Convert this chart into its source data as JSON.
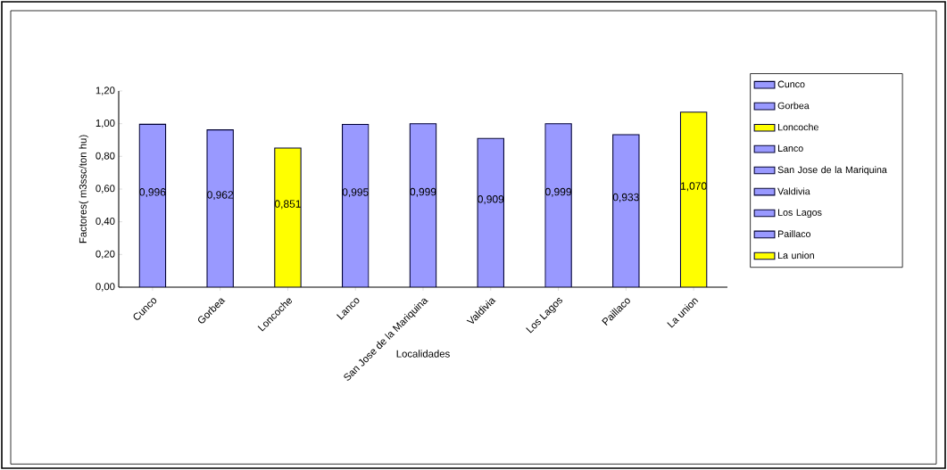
{
  "chart_data": {
    "type": "bar",
    "xlabel": "Localidades",
    "ylabel": "Factores( m3ssc/ton hu)",
    "categories": [
      "Cunco",
      "Gorbea",
      "Loncoche",
      "Lanco",
      "San Jose de la Mariquina",
      "Valdivia",
      "Los Lagos",
      "Paillaco",
      "La union"
    ],
    "series": [
      {
        "name": "Cunco",
        "color": "#9999ff",
        "values": [
          0.996,
          null,
          null,
          null,
          null,
          null,
          null,
          null,
          null
        ],
        "value_labels": [
          "0,996",
          null,
          null,
          null,
          null,
          null,
          null,
          null,
          null
        ]
      },
      {
        "name": "Gorbea",
        "color": "#9999ff",
        "values": [
          null,
          0.962,
          null,
          null,
          null,
          null,
          null,
          null,
          null
        ],
        "value_labels": [
          null,
          "0,962",
          null,
          null,
          null,
          null,
          null,
          null,
          null
        ]
      },
      {
        "name": "Loncoche",
        "color": "#ffff00",
        "values": [
          null,
          null,
          0.851,
          null,
          null,
          null,
          null,
          null,
          null
        ],
        "value_labels": [
          null,
          null,
          "0,851",
          null,
          null,
          null,
          null,
          null,
          null
        ]
      },
      {
        "name": "Lanco",
        "color": "#9999ff",
        "values": [
          null,
          null,
          null,
          0.995,
          null,
          null,
          null,
          null,
          null
        ],
        "value_labels": [
          null,
          null,
          null,
          "0,995",
          null,
          null,
          null,
          null,
          null
        ]
      },
      {
        "name": "San Jose de la Mariquina",
        "color": "#9999ff",
        "values": [
          null,
          null,
          null,
          null,
          0.999,
          null,
          null,
          null,
          null
        ],
        "value_labels": [
          null,
          null,
          null,
          null,
          "0,999",
          null,
          null,
          null,
          null
        ]
      },
      {
        "name": "Valdivia",
        "color": "#9999ff",
        "values": [
          null,
          null,
          null,
          null,
          null,
          0.909,
          null,
          null,
          null
        ],
        "value_labels": [
          null,
          null,
          null,
          null,
          null,
          "0,909",
          null,
          null,
          null
        ]
      },
      {
        "name": "Los Lagos",
        "color": "#9999ff",
        "values": [
          null,
          null,
          null,
          null,
          null,
          null,
          0.999,
          null,
          null
        ],
        "value_labels": [
          null,
          null,
          null,
          null,
          null,
          null,
          "0,999",
          null,
          null
        ]
      },
      {
        "name": "Paillaco",
        "color": "#9999ff",
        "values": [
          null,
          null,
          null,
          null,
          null,
          null,
          null,
          0.933,
          null
        ],
        "value_labels": [
          null,
          null,
          null,
          null,
          null,
          null,
          null,
          "0,933",
          null
        ]
      },
      {
        "name": "La union",
        "color": "#ffff00",
        "values": [
          null,
          null,
          null,
          null,
          null,
          null,
          null,
          null,
          1.07
        ],
        "value_labels": [
          null,
          null,
          null,
          null,
          null,
          null,
          null,
          null,
          "1,070"
        ]
      }
    ],
    "ylim": [
      0,
      1.2
    ],
    "yticks": [
      {
        "value": 0,
        "label": "0,00"
      },
      {
        "value": 0.2,
        "label": "0,20"
      },
      {
        "value": 0.4,
        "label": "0,40"
      },
      {
        "value": 0.6,
        "label": "0,60"
      },
      {
        "value": 0.8,
        "label": "0,80"
      },
      {
        "value": 1.0,
        "label": "1,00"
      },
      {
        "value": 1.2,
        "label": "1,20"
      }
    ],
    "grid": false,
    "legend": "right"
  }
}
